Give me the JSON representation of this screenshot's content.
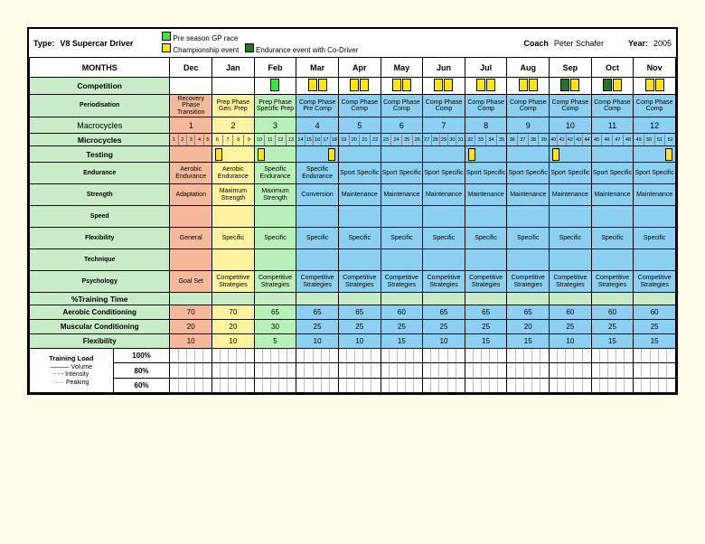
{
  "header": {
    "type_label": "Type:",
    "type_value": "V8 Supercar Driver",
    "legend": [
      {
        "color": "#39e639",
        "label": "Pre season GP race"
      },
      {
        "color": "#ffe600",
        "label": "Championship event"
      },
      {
        "color": "#1f7a1f",
        "label": "Endurance event with Co-Driver"
      }
    ],
    "coach_label": "Coach",
    "coach_value": "Peter Schafer",
    "year_label": "Year:",
    "year_value": "2005"
  },
  "months_label": "MONTHS",
  "months": [
    "Dec",
    "Jan",
    "Feb",
    "Mar",
    "Apr",
    "May",
    "Jun",
    "Jul",
    "Aug",
    "Sep",
    "Oct",
    "Nov"
  ],
  "rows": {
    "competition": "Competition",
    "periodisation": "Periodisation",
    "macrocycles": "Macrocycles",
    "microcycles": "Microcycles",
    "testing": "Testing",
    "endurance": "Endurance",
    "strength": "Strength",
    "speed": "Speed",
    "flexibility": "Flexibility",
    "technique": "Technique",
    "psychology": "Psychology",
    "pct_training": "%Training Time",
    "aerobic": "Aerobic Conditioning",
    "muscular": "Muscular Conditioning",
    "flexibility_pct": "Flexibility",
    "training_load": "Training Load",
    "volume": "Volume",
    "intensity": "Intensity",
    "peaking": "Peaking"
  },
  "competition_markers": {
    "Dec": [],
    "Jan": [],
    "Feb": [
      "#39e639"
    ],
    "Mar": [
      "#ffe600",
      "#ffe600"
    ],
    "Apr": [
      "#ffe600",
      "#ffe600"
    ],
    "May": [
      "#ffe600",
      "#ffe600"
    ],
    "Jun": [
      "#ffe600",
      "#ffe600"
    ],
    "Jul": [
      "#ffe600",
      "#ffe600"
    ],
    "Aug": [
      "#ffe600",
      "#ffe600"
    ],
    "Sep": [
      "#1f7a1f",
      "#ffe600"
    ],
    "Oct": [
      "#1f7a1f",
      "#ffe600"
    ],
    "Nov": [
      "#ffe600",
      "#ffe600"
    ]
  },
  "periodisation_cells": [
    {
      "text": "Recovery Phase Transition",
      "bg": "#f4b99a"
    },
    {
      "text": "Prep Phase Gen. Prep",
      "bg": "#fff3a0"
    },
    {
      "text": "Prep Phase Specific Prep",
      "bg": "#b9f0b9"
    },
    {
      "text": "Comp Phase Pre Comp",
      "bg": "#8bd0f0"
    },
    {
      "text": "Comp Phase Comp",
      "bg": "#8bd0f0"
    },
    {
      "text": "Comp Phase Comp",
      "bg": "#8bd0f0"
    },
    {
      "text": "Comp Phase Comp",
      "bg": "#8bd0f0"
    },
    {
      "text": "Comp Phase Comp",
      "bg": "#8bd0f0"
    },
    {
      "text": "Comp Phase Comp",
      "bg": "#8bd0f0"
    },
    {
      "text": "Comp Phase Comp",
      "bg": "#8bd0f0"
    },
    {
      "text": "Comp Phase Comp",
      "bg": "#8bd0f0"
    },
    {
      "text": "Comp Phase Comp",
      "bg": "#8bd0f0"
    }
  ],
  "macro_bgs": [
    "#f4b99a",
    "#fff3a0",
    "#b9f0b9",
    "#8bd0f0",
    "#8bd0f0",
    "#8bd0f0",
    "#8bd0f0",
    "#8bd0f0",
    "#8bd0f0",
    "#8bd0f0",
    "#8bd0f0",
    "#8bd0f0"
  ],
  "macro_values": [
    "1",
    "2",
    "3",
    "4",
    "5",
    "6",
    "7",
    "8",
    "9",
    "10",
    "11",
    "12"
  ],
  "micro_start": 1,
  "testing_markers": [
    "",
    "start",
    "start",
    "end",
    "",
    "",
    "",
    "start",
    "",
    "start",
    "",
    "end"
  ],
  "endurance_cells": [
    {
      "t": "Aerobic Endurance",
      "bg": "#f4b99a"
    },
    {
      "t": "Aerobic Endurance",
      "bg": "#fff3a0"
    },
    {
      "t": "Specific Endurance",
      "bg": "#b9f0b9"
    },
    {
      "t": "Specific Endurance",
      "bg": "#8bd0f0"
    },
    {
      "t": "Sport Specific",
      "bg": "#8bd0f0"
    },
    {
      "t": "Sport Specific",
      "bg": "#8bd0f0"
    },
    {
      "t": "Sport Specific",
      "bg": "#8bd0f0"
    },
    {
      "t": "Sport Specific",
      "bg": "#8bd0f0"
    },
    {
      "t": "Sport Specific",
      "bg": "#8bd0f0"
    },
    {
      "t": "Sport Specific",
      "bg": "#8bd0f0"
    },
    {
      "t": "Sport Specific",
      "bg": "#8bd0f0"
    },
    {
      "t": "Sport Specific",
      "bg": "#8bd0f0"
    }
  ],
  "strength_cells": [
    {
      "t": "Adaptation",
      "bg": "#f4b99a"
    },
    {
      "t": "Maximum Strength",
      "bg": "#fff3a0"
    },
    {
      "t": "Maximum Strength",
      "bg": "#b9f0b9"
    },
    {
      "t": "Conversion",
      "bg": "#8bd0f0"
    },
    {
      "t": "Maintenance",
      "bg": "#8bd0f0"
    },
    {
      "t": "Maintenance",
      "bg": "#8bd0f0"
    },
    {
      "t": "Maintenance",
      "bg": "#8bd0f0"
    },
    {
      "t": "Maintenance",
      "bg": "#8bd0f0"
    },
    {
      "t": "Maintenance",
      "bg": "#8bd0f0"
    },
    {
      "t": "Maintenance",
      "bg": "#8bd0f0"
    },
    {
      "t": "Maintenance",
      "bg": "#8bd0f0"
    },
    {
      "t": "Maintenance",
      "bg": "#8bd0f0"
    }
  ],
  "speed_cells": [
    {
      "t": "",
      "bg": "#f4b99a"
    },
    {
      "t": "",
      "bg": "#fff3a0"
    },
    {
      "t": "",
      "bg": "#b9f0b9"
    },
    {
      "t": "",
      "bg": "#8bd0f0"
    },
    {
      "t": "",
      "bg": "#8bd0f0"
    },
    {
      "t": "",
      "bg": "#8bd0f0"
    },
    {
      "t": "",
      "bg": "#8bd0f0"
    },
    {
      "t": "",
      "bg": "#8bd0f0"
    },
    {
      "t": "",
      "bg": "#8bd0f0"
    },
    {
      "t": "",
      "bg": "#8bd0f0"
    },
    {
      "t": "",
      "bg": "#8bd0f0"
    },
    {
      "t": "",
      "bg": "#8bd0f0"
    }
  ],
  "flex_cells": [
    {
      "t": "General",
      "bg": "#f4b99a"
    },
    {
      "t": "Specific",
      "bg": "#fff3a0"
    },
    {
      "t": "Specific",
      "bg": "#b9f0b9"
    },
    {
      "t": "Specific",
      "bg": "#8bd0f0"
    },
    {
      "t": "Specific",
      "bg": "#8bd0f0"
    },
    {
      "t": "Specific",
      "bg": "#8bd0f0"
    },
    {
      "t": "Specific",
      "bg": "#8bd0f0"
    },
    {
      "t": "Specific",
      "bg": "#8bd0f0"
    },
    {
      "t": "Specific",
      "bg": "#8bd0f0"
    },
    {
      "t": "Specific",
      "bg": "#8bd0f0"
    },
    {
      "t": "Specific",
      "bg": "#8bd0f0"
    },
    {
      "t": "Specific",
      "bg": "#8bd0f0"
    }
  ],
  "technique_cells": [
    {
      "t": "",
      "bg": "#f4b99a"
    },
    {
      "t": "",
      "bg": "#fff3a0"
    },
    {
      "t": "",
      "bg": "#b9f0b9"
    },
    {
      "t": "",
      "bg": "#8bd0f0"
    },
    {
      "t": "",
      "bg": "#8bd0f0"
    },
    {
      "t": "",
      "bg": "#8bd0f0"
    },
    {
      "t": "",
      "bg": "#8bd0f0"
    },
    {
      "t": "",
      "bg": "#8bd0f0"
    },
    {
      "t": "",
      "bg": "#8bd0f0"
    },
    {
      "t": "",
      "bg": "#8bd0f0"
    },
    {
      "t": "",
      "bg": "#8bd0f0"
    },
    {
      "t": "",
      "bg": "#8bd0f0"
    }
  ],
  "psych_cells": [
    {
      "t": "Goal Set",
      "bg": "#f4b99a"
    },
    {
      "t": "Competitive Strategies",
      "bg": "#fff3a0"
    },
    {
      "t": "Competitive Strategies",
      "bg": "#b9f0b9"
    },
    {
      "t": "Competitive Strategies",
      "bg": "#8bd0f0"
    },
    {
      "t": "Competitive Strategies",
      "bg": "#8bd0f0"
    },
    {
      "t": "Competitive Strategies",
      "bg": "#8bd0f0"
    },
    {
      "t": "Competitive Strategies",
      "bg": "#8bd0f0"
    },
    {
      "t": "Competitive Strategies",
      "bg": "#8bd0f0"
    },
    {
      "t": "Competitive Strategies",
      "bg": "#8bd0f0"
    },
    {
      "t": "Competitive Strategies",
      "bg": "#8bd0f0"
    },
    {
      "t": "Competitive Strategies",
      "bg": "#8bd0f0"
    },
    {
      "t": "Competitive Strategies",
      "bg": "#8bd0f0"
    }
  ],
  "aerobic_vals": [
    {
      "t": "70",
      "bg": "#f4b99a"
    },
    {
      "t": "70",
      "bg": "#fff3a0"
    },
    {
      "t": "65",
      "bg": "#b9f0b9"
    },
    {
      "t": "65",
      "bg": "#8bd0f0"
    },
    {
      "t": "65",
      "bg": "#8bd0f0"
    },
    {
      "t": "60",
      "bg": "#8bd0f0"
    },
    {
      "t": "65",
      "bg": "#8bd0f0"
    },
    {
      "t": "65",
      "bg": "#8bd0f0"
    },
    {
      "t": "65",
      "bg": "#8bd0f0"
    },
    {
      "t": "60",
      "bg": "#8bd0f0"
    },
    {
      "t": "60",
      "bg": "#8bd0f0"
    },
    {
      "t": "60",
      "bg": "#8bd0f0"
    }
  ],
  "muscular_vals": [
    {
      "t": "20",
      "bg": "#f4b99a"
    },
    {
      "t": "20",
      "bg": "#fff3a0"
    },
    {
      "t": "30",
      "bg": "#b9f0b9"
    },
    {
      "t": "25",
      "bg": "#8bd0f0"
    },
    {
      "t": "25",
      "bg": "#8bd0f0"
    },
    {
      "t": "25",
      "bg": "#8bd0f0"
    },
    {
      "t": "25",
      "bg": "#8bd0f0"
    },
    {
      "t": "25",
      "bg": "#8bd0f0"
    },
    {
      "t": "20",
      "bg": "#8bd0f0"
    },
    {
      "t": "25",
      "bg": "#8bd0f0"
    },
    {
      "t": "25",
      "bg": "#8bd0f0"
    },
    {
      "t": "25",
      "bg": "#8bd0f0"
    }
  ],
  "flex_pct_vals": [
    {
      "t": "10",
      "bg": "#f4b99a"
    },
    {
      "t": "10",
      "bg": "#fff3a0"
    },
    {
      "t": "5",
      "bg": "#b9f0b9"
    },
    {
      "t": "10",
      "bg": "#8bd0f0"
    },
    {
      "t": "10",
      "bg": "#8bd0f0"
    },
    {
      "t": "15",
      "bg": "#8bd0f0"
    },
    {
      "t": "10",
      "bg": "#8bd0f0"
    },
    {
      "t": "15",
      "bg": "#8bd0f0"
    },
    {
      "t": "15",
      "bg": "#8bd0f0"
    },
    {
      "t": "10",
      "bg": "#8bd0f0"
    },
    {
      "t": "15",
      "bg": "#8bd0f0"
    },
    {
      "t": "15",
      "bg": "#8bd0f0"
    }
  ],
  "load_pcts": [
    "100%",
    "80%",
    "60%"
  ]
}
